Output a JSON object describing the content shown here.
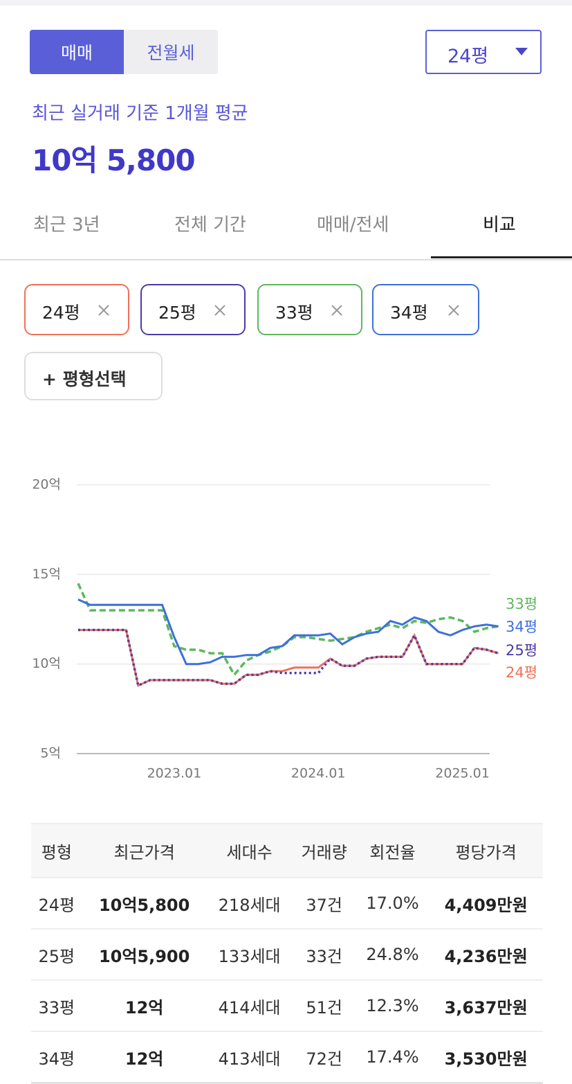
{
  "toggle": {
    "items": [
      "매매",
      "전월세"
    ],
    "active": 0
  },
  "size_select": "24평",
  "summary": {
    "label": "최근 실거래 기준 1개월 평균",
    "price": "10억 5,800"
  },
  "period_tabs": {
    "items": [
      "최근 3년",
      "전체 기간",
      "매매/전세",
      "비교"
    ],
    "active": 3
  },
  "chips": [
    "24평",
    "25평",
    "33평",
    "34평"
  ],
  "add_button": "+ 평형선택",
  "chart_data": {
    "type": "line",
    "x": [
      "2022.05",
      "2022.06",
      "2022.07",
      "2022.08",
      "2022.09",
      "2022.10",
      "2022.11",
      "2022.12",
      "2023.01",
      "2023.02",
      "2023.03",
      "2023.04",
      "2023.05",
      "2023.06",
      "2023.07",
      "2023.08",
      "2023.09",
      "2023.10",
      "2023.11",
      "2023.12",
      "2024.01",
      "2024.02",
      "2024.03",
      "2024.04",
      "2024.05",
      "2024.06",
      "2024.07",
      "2024.08",
      "2024.09",
      "2024.10",
      "2024.11",
      "2024.12",
      "2025.01",
      "2025.02",
      "2025.03",
      "2025.04"
    ],
    "xticks": [
      "2023.01",
      "2024.01",
      "2025.01"
    ],
    "ylim": [
      5,
      20
    ],
    "yticks": [
      {
        "value": 5,
        "label": "5억"
      },
      {
        "value": 10,
        "label": "10억"
      },
      {
        "value": 15,
        "label": "15억"
      },
      {
        "value": 20,
        "label": "20억"
      }
    ],
    "grid": true,
    "series": [
      {
        "name": "24평",
        "color": "#f0705a",
        "style": "solid",
        "values": [
          11.9,
          11.9,
          11.9,
          11.9,
          11.9,
          8.8,
          9.1,
          9.1,
          9.1,
          9.1,
          9.1,
          9.1,
          8.9,
          8.9,
          9.4,
          9.4,
          9.6,
          9.6,
          9.8,
          9.8,
          9.8,
          10.3,
          9.9,
          9.9,
          10.3,
          10.4,
          10.4,
          10.4,
          11.6,
          10.0,
          10.0,
          10.0,
          10.0,
          10.9,
          10.8,
          10.6
        ]
      },
      {
        "name": "25평",
        "color": "#4b3aa8",
        "style": "dotted",
        "values": [
          11.9,
          11.9,
          11.9,
          11.9,
          11.9,
          8.8,
          9.1,
          9.1,
          9.1,
          9.1,
          9.1,
          9.1,
          8.9,
          8.9,
          9.4,
          9.4,
          9.6,
          9.5,
          9.5,
          9.5,
          9.5,
          10.3,
          9.9,
          9.9,
          10.3,
          10.4,
          10.4,
          10.4,
          11.6,
          10.0,
          10.0,
          10.0,
          10.0,
          10.9,
          10.8,
          10.6
        ]
      },
      {
        "name": "33평",
        "color": "#5cb85c",
        "style": "dashed",
        "values": [
          14.5,
          13.0,
          13.0,
          13.0,
          13.0,
          13.0,
          13.0,
          13.0,
          11.0,
          10.8,
          10.8,
          10.6,
          10.6,
          9.4,
          10.2,
          10.5,
          10.7,
          11.0,
          11.5,
          11.5,
          11.4,
          11.3,
          11.4,
          11.5,
          11.8,
          12.0,
          12.2,
          12.0,
          12.4,
          12.3,
          12.5,
          12.6,
          12.4,
          11.8,
          12.0,
          12.1
        ]
      },
      {
        "name": "34평",
        "color": "#3d6fdc",
        "style": "solid",
        "values": [
          13.6,
          13.3,
          13.3,
          13.3,
          13.3,
          13.3,
          13.3,
          13.3,
          11.5,
          10.0,
          10.0,
          10.1,
          10.4,
          10.4,
          10.5,
          10.5,
          10.9,
          11.0,
          11.6,
          11.6,
          11.6,
          11.7,
          11.1,
          11.5,
          11.7,
          11.8,
          12.4,
          12.2,
          12.6,
          12.4,
          11.8,
          11.6,
          11.9,
          12.1,
          12.2,
          12.1
        ]
      }
    ]
  },
  "table": {
    "headers": [
      "평형",
      "최근가격",
      "세대수",
      "거래량",
      "회전율",
      "평당가격"
    ],
    "rows": [
      [
        "24평",
        "10억5,800",
        "218세대",
        "37건",
        "17.0%",
        "4,409만원"
      ],
      [
        "25평",
        "10억5,900",
        "133세대",
        "33건",
        "24.8%",
        "4,236만원"
      ],
      [
        "33평",
        "12억",
        "414세대",
        "51건",
        "12.3%",
        "3,637만원"
      ],
      [
        "34평",
        "12억",
        "413세대",
        "72건",
        "17.4%",
        "3,530만원"
      ]
    ]
  }
}
